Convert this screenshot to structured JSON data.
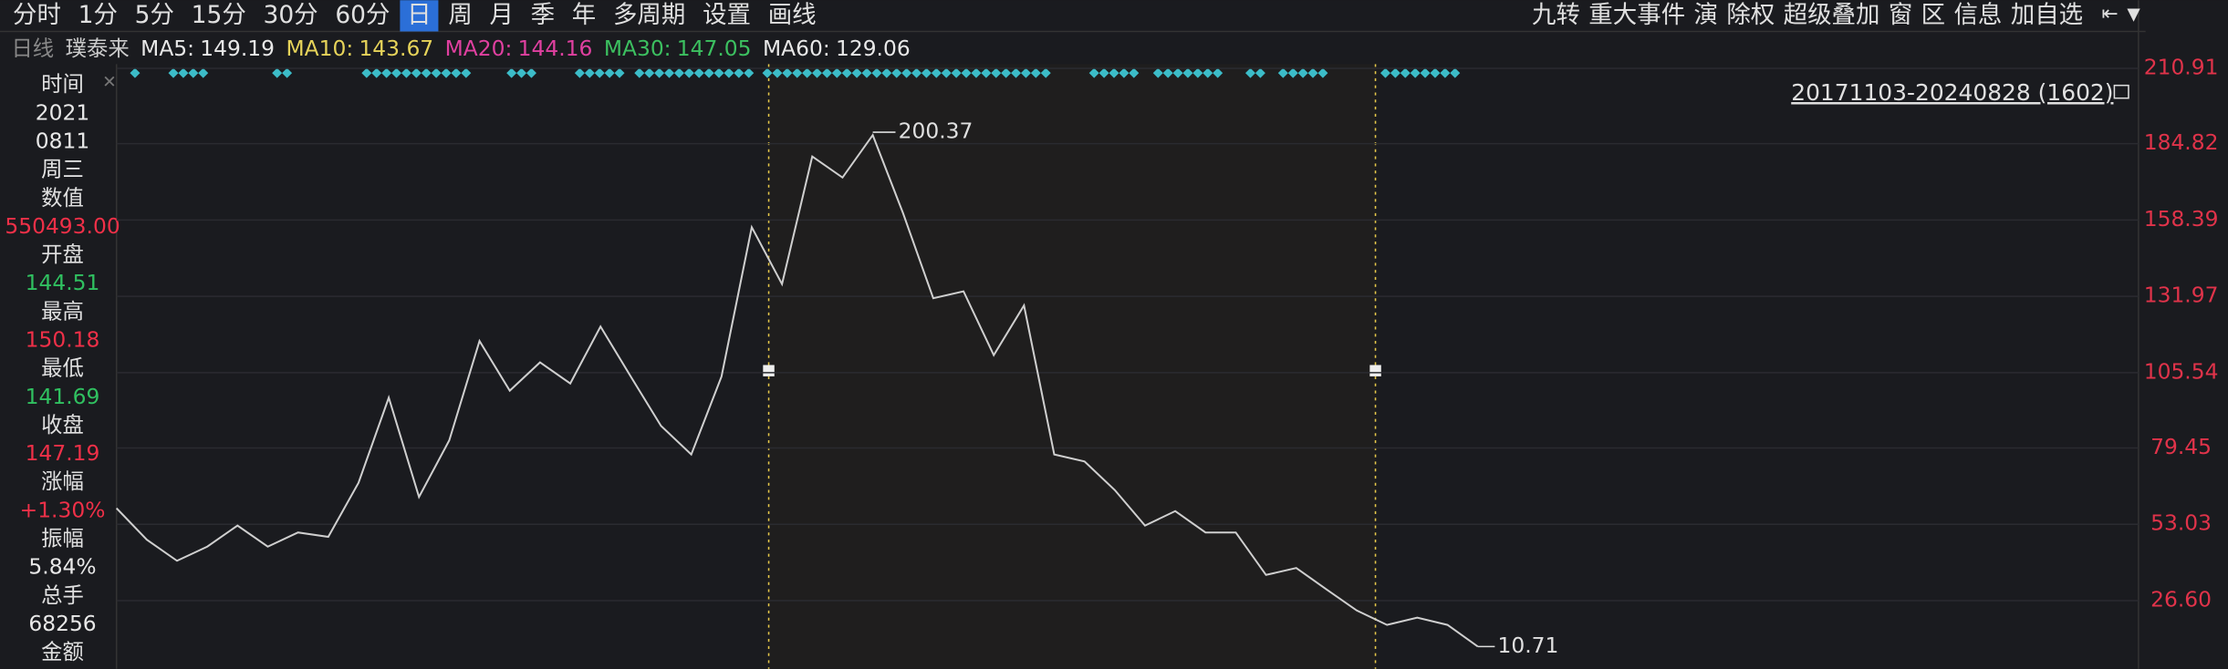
{
  "toolbar": {
    "left": [
      "分时",
      "1分",
      "5分",
      "15分",
      "30分",
      "60分",
      "日",
      "周",
      "月",
      "季",
      "年",
      "多周期",
      "设置",
      "画线"
    ],
    "selected": 6,
    "right": [
      "九转",
      "重大事件",
      "演",
      "除权",
      "超级叠加",
      "窗",
      "区",
      "信息",
      "加自选"
    ]
  },
  "ma_bar": {
    "period": "日线",
    "name": "璞泰来",
    "items": [
      {
        "label": "MA5:",
        "value": 149.19,
        "color": "#e8e8e8"
      },
      {
        "label": "MA10:",
        "value": 143.67,
        "color": "#e6d35a"
      },
      {
        "label": "MA20:",
        "value": 144.16,
        "color": "#e040a0"
      },
      {
        "label": "MA30:",
        "value": 147.05,
        "color": "#3cc060"
      },
      {
        "label": "MA60:",
        "value": 129.06,
        "color": "#e8e8e8"
      }
    ]
  },
  "sidebar": [
    {
      "label": "时间",
      "values": [
        "2021",
        "0811",
        "周三"
      ],
      "color": "#e8e8e8"
    },
    {
      "label": "数值",
      "values": [
        "550493.00"
      ],
      "color": "#f03048"
    },
    {
      "label": "开盘",
      "values": [
        "144.51"
      ],
      "color": "#30c060"
    },
    {
      "label": "最高",
      "values": [
        "150.18"
      ],
      "color": "#f03048"
    },
    {
      "label": "最低",
      "values": [
        "141.69"
      ],
      "color": "#30c060"
    },
    {
      "label": "收盘",
      "values": [
        "147.19"
      ],
      "color": "#f03048"
    },
    {
      "label": "涨幅",
      "values": [
        "+1.30%"
      ],
      "color": "#f03048"
    },
    {
      "label": "振幅",
      "values": [
        "5.84%"
      ],
      "color": "#e8e8e8"
    },
    {
      "label": "总手",
      "values": [
        "68256"
      ],
      "color": "#e8e8e8"
    },
    {
      "label": "金额",
      "values": [],
      "color": "#e8e8e8"
    }
  ],
  "range_label": "20171103-20240828 (1602)",
  "chart_data": {
    "type": "line",
    "series": [
      {
        "name": "璞泰来",
        "color": "#cfcfcf",
        "values": [
          58.6,
          47.7,
          40.4,
          45.3,
          52.6,
          45.3,
          50.2,
          48.7,
          67.4,
          96.9,
          62.5,
          82.1,
          116.5,
          99.3,
          109.1,
          101.8,
          121.5,
          104.2,
          87.1,
          77.2,
          104.2,
          155.9,
          136.2,
          180.4,
          173.1,
          187.8,
          160.8,
          131.3,
          133.7,
          111.6,
          128.8,
          77.2,
          74.8,
          64.9,
          52.6,
          57.6,
          50.2,
          50.2,
          35.5,
          37.9,
          30.5,
          23.2,
          18.2,
          20.7,
          18.2,
          10.71
        ]
      }
    ],
    "ylim": [
      8.41,
      212.38
    ],
    "yticks": [
      210.91,
      184.82,
      158.39,
      131.97,
      105.54,
      79.45,
      53.03,
      {
        "value": 26.6,
        "label": "26.60"
      }
    ],
    "grid": true,
    "annotations": [
      "200.37",
      "10.71"
    ]
  }
}
